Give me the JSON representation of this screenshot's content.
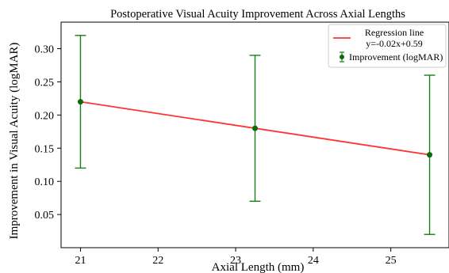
{
  "chart_data": {
    "type": "scatter",
    "title": "Postoperative Visual Acuity Improvement Across Axial Lengths",
    "xlabel": "Axial Length (mm)",
    "ylabel": "Improvement in Visual Acuity (logMAR)",
    "xlim": [
      20.75,
      25.75
    ],
    "ylim": [
      0.0,
      0.34
    ],
    "x_ticks": [
      21,
      22,
      23,
      24,
      25
    ],
    "y_ticks": [
      0.05,
      0.1,
      0.15,
      0.2,
      0.25,
      0.3
    ],
    "y_tick_labels": [
      "0.05",
      "0.10",
      "0.15",
      "0.20",
      "0.25",
      "0.30"
    ],
    "grid": false,
    "legend_position": "top-right",
    "series": [
      {
        "name": "Improvement (logMAR)",
        "kind": "errorbar",
        "color": "#1a7f1a",
        "x": [
          21.0,
          23.25,
          25.5
        ],
        "y": [
          0.22,
          0.18,
          0.14
        ],
        "yerr_low": [
          0.12,
          0.07,
          0.02
        ],
        "yerr_high": [
          0.32,
          0.29,
          0.26
        ]
      },
      {
        "name": "Regression line",
        "label_line2": "y=-0.02x+0.59",
        "kind": "line",
        "color": "#ff3333",
        "x": [
          21.0,
          25.5
        ],
        "y": [
          0.22,
          0.14
        ]
      }
    ]
  }
}
